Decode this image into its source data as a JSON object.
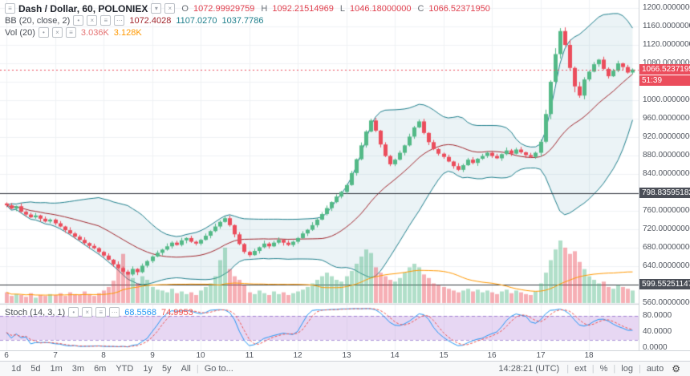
{
  "header": {
    "title": "Dash / Dollar, 60, POLONIEX",
    "ohlc": {
      "o_label": "O",
      "o_value": "1072.99929759",
      "h_label": "H",
      "h_value": "1092.21514969",
      "l_label": "L",
      "l_value": "1046.18000000",
      "c_label": "C",
      "c_value": "1066.52371950"
    },
    "bb": {
      "label": "BB (20, close, 2)",
      "v1": "1072.4028",
      "v2": "1107.0270",
      "v3": "1037.7786"
    },
    "vol": {
      "label": "Vol (20)",
      "v1": "3.036K",
      "v2": "3.128K"
    }
  },
  "stoch_legend": {
    "label": "Stoch (14, 3, 1)",
    "v1": "68.5568",
    "v2": "74.9953"
  },
  "tags": {
    "last": "1066.52371950",
    "countdown": "51:39",
    "level1": "798.83595182",
    "level2": "599.55251147"
  },
  "axes": {
    "price_scale": [
      "1200.00000000",
      "1160.00000000",
      "1120.00000000",
      "1080.00000000",
      "1040.00000000",
      "1000.00000000",
      "960.00000000",
      "920.00000000",
      "880.00000000",
      "840.00000000",
      "760.00000000",
      "720.00000000",
      "680.00000000",
      "640.00000000",
      "560.00000000"
    ],
    "stoch_scale": [
      "80.0000",
      "40.0000",
      "0.0000"
    ],
    "time": [
      "6",
      "7",
      "8",
      "9",
      "10",
      "11",
      "12",
      "13",
      "14",
      "15",
      "16",
      "17",
      "18"
    ]
  },
  "toolbar": {
    "ranges": [
      "1d",
      "5d",
      "1m",
      "3m",
      "6m",
      "YTD",
      "1y",
      "5y",
      "All"
    ],
    "goto": "Go to...",
    "clock": "14:28:21 (UTC)",
    "ext": "ext",
    "percent": "%",
    "log": "log",
    "auto": "auto"
  },
  "colors": {
    "up": "#53b987",
    "down": "#eb4d5c",
    "up_vol": "rgba(83,185,135,0.45)",
    "down_vol": "rgba(235,77,92,0.45)",
    "bb_band": "#1e7f8c",
    "bb_basis": "#a1262d",
    "bb_fill": "rgba(60,140,170,0.10)",
    "vol_ma": "#ff9800",
    "stoch_k": "#2196f3",
    "stoch_d": "#ef5350",
    "stoch_band": "rgba(174,121,214,0.30)",
    "stoch_band_line": "rgba(103,58,183,0.55)",
    "level_line": "#32363e",
    "last_line": "#eb4d5c",
    "ohlc_down": "#e0404e",
    "vol_v1": "#e57373",
    "vol_v2": "#ff9800",
    "grid": "#f0f2f5"
  },
  "chart_data": {
    "type": "candlestick",
    "title": "Dash / Dollar, 60, POLONIEX",
    "interval_minutes": 60,
    "x_days": [
      6,
      7,
      8,
      9,
      10,
      11,
      12,
      13,
      14,
      15,
      16,
      17,
      18
    ],
    "candles_per_day": 10,
    "price_axis": {
      "min": 560,
      "max": 1200,
      "step": 40
    },
    "first_open": 776,
    "closes": [
      772,
      765,
      770,
      758,
      752,
      746,
      750,
      743,
      737,
      741,
      733,
      726,
      718,
      711,
      704,
      697,
      690,
      684,
      679,
      671,
      663,
      654,
      644,
      636,
      628,
      622,
      634,
      627,
      641,
      651,
      661,
      669,
      676,
      683,
      691,
      686,
      696,
      701,
      693,
      689,
      697,
      706,
      716,
      726,
      736,
      744,
      729,
      709,
      688,
      671,
      664,
      673,
      681,
      689,
      683,
      691,
      697,
      691,
      686,
      693,
      701,
      711,
      719,
      729,
      741,
      753,
      766,
      779,
      791,
      801,
      816,
      842,
      872,
      902,
      932,
      956,
      934,
      904,
      879,
      861,
      871,
      886,
      902,
      921,
      941,
      954,
      929,
      909,
      894,
      884,
      877,
      867,
      857,
      849,
      859,
      871,
      864,
      873,
      879,
      886,
      879,
      874,
      883,
      891,
      884,
      893,
      887,
      881,
      877,
      886,
      910,
      970,
      1040,
      1100,
      1150,
      1120,
      1070,
      1030,
      1010,
      1045,
      1062,
      1078,
      1088,
      1068,
      1052,
      1064,
      1080,
      1072,
      1060,
      1066.52
    ],
    "volumes": [
      12,
      8,
      10,
      9,
      7,
      11,
      6,
      9,
      8,
      10,
      9,
      11,
      8,
      12,
      10,
      9,
      13,
      10,
      8,
      11,
      14,
      18,
      25,
      40,
      55,
      35,
      28,
      22,
      30,
      26,
      18,
      15,
      14,
      12,
      16,
      11,
      13,
      10,
      12,
      9,
      14,
      18,
      22,
      30,
      48,
      62,
      38,
      30,
      26,
      20,
      12,
      10,
      14,
      11,
      9,
      13,
      10,
      12,
      9,
      11,
      13,
      15,
      18,
      22,
      26,
      30,
      34,
      30,
      26,
      24,
      30,
      36,
      44,
      52,
      60,
      56,
      40,
      34,
      30,
      26,
      24,
      28,
      34,
      40,
      44,
      40,
      32,
      28,
      22,
      20,
      18,
      16,
      14,
      12,
      14,
      16,
      13,
      15,
      12,
      14,
      12,
      10,
      13,
      15,
      11,
      14,
      12,
      10,
      9,
      13,
      22,
      34,
      48,
      60,
      70,
      62,
      55,
      58,
      46,
      38,
      30,
      26,
      22,
      24,
      18,
      16,
      20,
      18,
      16,
      14
    ],
    "last_price": 1066.5237195,
    "levels": [
      798.83595182,
      599.55251147
    ],
    "indicators": {
      "bollinger": {
        "length": 20,
        "source": "close",
        "mult": 2,
        "basis_last": 1072.4028,
        "upper_last": 1107.027,
        "lower_last": 1037.7786
      },
      "volume_ma": {
        "length": 20,
        "vol_last": "3.036K",
        "ma_last": "3.128K"
      },
      "stoch": {
        "k": 14,
        "d": 3,
        "smooth": 1,
        "k_last": 68.5568,
        "d_last": 74.9953,
        "scale": [
          80,
          40,
          0
        ],
        "band": [
          20,
          80
        ]
      }
    }
  }
}
